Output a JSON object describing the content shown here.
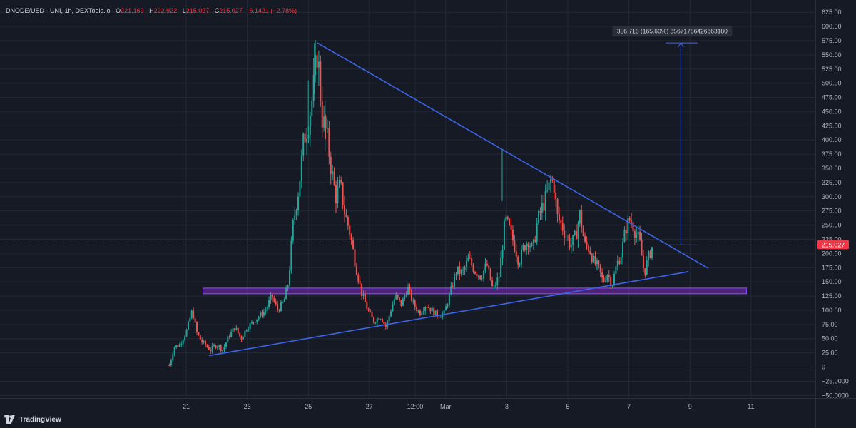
{
  "legend": {
    "symbol": "DNODE/USD - UNI, 1h, DEXTools.io",
    "open_key": "O",
    "open": "221.169",
    "high_key": "H",
    "high": "222.922",
    "low_key": "L",
    "low": "215.027",
    "close_key": "C",
    "close": "215.027",
    "change": "-6.1421 (−2.78%)"
  },
  "brand": {
    "name": "TradingView",
    "icon": "tradingview-logo-icon"
  },
  "colors": {
    "background": "#161a25",
    "grid": "#232836",
    "up": "#26a69a",
    "down": "#ef5350",
    "trendline": "#3d63e8",
    "support_zone": "#7b2cbf",
    "price_tag": "#f23645",
    "axis_text": "#b2b5be"
  },
  "chart_data": {
    "type": "candlestick",
    "title": "DNODE/USD - UNI, 1h, DEXTools.io",
    "ylim": [
      -57,
      630
    ],
    "y_ticks": [
      -50,
      -25,
      0,
      25,
      50,
      75,
      100,
      125,
      150,
      175,
      200,
      225,
      250,
      275,
      300,
      325,
      350,
      375,
      400,
      425,
      450,
      475,
      500,
      525,
      550,
      575,
      600,
      625
    ],
    "y_tick_labels": [
      "−50.0000",
      "−25.0000",
      "0",
      "25.00",
      "50.00",
      "75.00",
      "100.00",
      "125.00",
      "150.00",
      "175.00",
      "200.00",
      "225.00",
      "250.00",
      "275.00",
      "300.00",
      "325.00",
      "350.00",
      "375.00",
      "400.00",
      "425.00",
      "450.00",
      "475.00",
      "500.00",
      "525.00",
      "550.00",
      "575.00",
      "600.00",
      "625.00"
    ],
    "x_range": [
      19.3,
      12.3
    ],
    "x_ticks": [
      {
        "day": 21,
        "label": "21"
      },
      {
        "day": 23,
        "label": "23"
      },
      {
        "day": 25,
        "label": "25"
      },
      {
        "day": 27,
        "label": "27"
      },
      {
        "day": 28.5,
        "label": "12:00"
      },
      {
        "day": 29.5,
        "label": "Mar"
      },
      {
        "day": 31.5,
        "label": "3"
      },
      {
        "day": 33.5,
        "label": "5"
      },
      {
        "day": 35.5,
        "label": "7"
      },
      {
        "day": 37.5,
        "label": "9"
      },
      {
        "day": 39.5,
        "label": "11"
      }
    ],
    "path_points": [
      [
        20.45,
        3
      ],
      [
        20.6,
        35
      ],
      [
        20.8,
        40
      ],
      [
        21.0,
        62
      ],
      [
        21.2,
        100
      ],
      [
        21.35,
        60
      ],
      [
        21.5,
        45
      ],
      [
        21.8,
        30
      ],
      [
        22.0,
        40
      ],
      [
        22.2,
        30
      ],
      [
        22.4,
        55
      ],
      [
        22.6,
        70
      ],
      [
        22.8,
        50
      ],
      [
        23.0,
        70
      ],
      [
        23.2,
        80
      ],
      [
        23.4,
        90
      ],
      [
        23.6,
        100
      ],
      [
        23.8,
        125
      ],
      [
        24.0,
        100
      ],
      [
        24.2,
        115
      ],
      [
        24.35,
        150
      ],
      [
        24.5,
        250
      ],
      [
        24.7,
        320
      ],
      [
        24.85,
        400
      ],
      [
        25.0,
        430
      ],
      [
        25.15,
        480
      ],
      [
        25.3,
        560
      ],
      [
        25.45,
        440
      ],
      [
        25.6,
        410
      ],
      [
        25.75,
        350
      ],
      [
        25.9,
        300
      ],
      [
        26.05,
        320
      ],
      [
        26.2,
        270
      ],
      [
        26.35,
        240
      ],
      [
        26.55,
        180
      ],
      [
        26.75,
        130
      ],
      [
        26.95,
        100
      ],
      [
        27.15,
        80
      ],
      [
        27.35,
        90
      ],
      [
        27.55,
        70
      ],
      [
        27.7,
        100
      ],
      [
        27.85,
        125
      ],
      [
        28.05,
        110
      ],
      [
        28.25,
        140
      ],
      [
        28.45,
        110
      ],
      [
        28.65,
        95
      ],
      [
        28.85,
        110
      ],
      [
        29.05,
        100
      ],
      [
        29.25,
        90
      ],
      [
        29.45,
        95
      ],
      [
        29.65,
        130
      ],
      [
        29.85,
        170
      ],
      [
        30.05,
        165
      ],
      [
        30.25,
        190
      ],
      [
        30.45,
        170
      ],
      [
        30.65,
        160
      ],
      [
        30.85,
        180
      ],
      [
        31.05,
        135
      ],
      [
        31.25,
        160
      ],
      [
        31.45,
        260
      ],
      [
        31.6,
        240
      ],
      [
        31.75,
        215
      ],
      [
        31.9,
        185
      ],
      [
        32.05,
        210
      ],
      [
        32.2,
        225
      ],
      [
        32.35,
        205
      ],
      [
        32.5,
        255
      ],
      [
        32.65,
        280
      ],
      [
        32.8,
        300
      ],
      [
        32.95,
        330
      ],
      [
        33.05,
        320
      ],
      [
        33.15,
        265
      ],
      [
        33.3,
        250
      ],
      [
        33.45,
        230
      ],
      [
        33.6,
        215
      ],
      [
        33.75,
        230
      ],
      [
        33.9,
        270
      ],
      [
        34.05,
        215
      ],
      [
        34.2,
        210
      ],
      [
        34.35,
        185
      ],
      [
        34.5,
        175
      ],
      [
        34.65,
        150
      ],
      [
        34.8,
        165
      ],
      [
        34.95,
        145
      ],
      [
        35.1,
        180
      ],
      [
        35.25,
        200
      ],
      [
        35.4,
        245
      ],
      [
        35.55,
        262
      ],
      [
        35.7,
        240
      ],
      [
        35.85,
        222
      ],
      [
        36.0,
        165
      ],
      [
        36.15,
        195
      ],
      [
        36.3,
        218
      ]
    ],
    "tall_wicks": [
      [
        25.2,
        571
      ],
      [
        25.0,
        505
      ],
      [
        31.35,
        382
      ],
      [
        25.55,
        470
      ]
    ],
    "current_price": 215.027,
    "current_price_label": "215.027",
    "annotations": {
      "descending_trendline": [
        [
          25.3,
          571
        ],
        [
          38.1,
          174
        ]
      ],
      "ascending_trendline": [
        [
          21.75,
          20
        ],
        [
          37.45,
          168
        ]
      ],
      "support_zone": {
        "x0": 21.55,
        "x1": 39.35,
        "y0": 129,
        "y1": 139
      },
      "measure": {
        "x": 37.2,
        "x0": 36.7,
        "x1": 37.75,
        "y_low": 215,
        "y_high": 571
      },
      "measure_label": "356.718 (165.60%) 35671786426663180"
    }
  }
}
